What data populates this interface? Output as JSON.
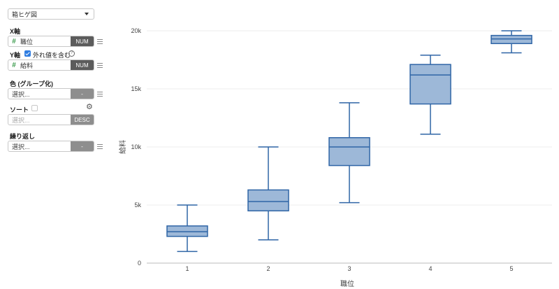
{
  "panel": {
    "chart_type": "箱ヒゲ図",
    "x_axis": {
      "label": "X軸",
      "field_icon": "#",
      "field": "職位",
      "type": "NUM"
    },
    "y_axis": {
      "label": "Y軸",
      "outlier_label": "外れ値を含む",
      "outlier_checked": true,
      "help": "?",
      "field_icon": "#",
      "field": "給料",
      "type": "NUM"
    },
    "color": {
      "label": "色 (グループ化)",
      "placeholder": "選択...",
      "tag": "-"
    },
    "sort": {
      "label": "ソート",
      "checked": false,
      "placeholder": "選択...",
      "tag": "DESC"
    },
    "repeat": {
      "label": "繰り返し",
      "placeholder": "選択...",
      "tag": "-"
    }
  },
  "chart_data": {
    "type": "boxplot",
    "xlabel": "職位",
    "ylabel": "給料",
    "categories": [
      "1",
      "2",
      "3",
      "4",
      "5"
    ],
    "ylim": [
      0,
      20000
    ],
    "yticks": [
      0,
      5000,
      10000,
      15000,
      20000
    ],
    "ytick_labels": [
      "0",
      "5k",
      "10k",
      "15k",
      "20k"
    ],
    "grid": true,
    "box_color": "#9db8d8",
    "line_color": "#2f65a6",
    "boxes": [
      {
        "x": "1",
        "min": 1000,
        "q1": 2300,
        "median": 2700,
        "q3": 3200,
        "max": 5000
      },
      {
        "x": "2",
        "min": 2000,
        "q1": 4500,
        "median": 5300,
        "q3": 6300,
        "max": 10000
      },
      {
        "x": "3",
        "min": 5200,
        "q1": 8400,
        "median": 10000,
        "q3": 10800,
        "max": 13800
      },
      {
        "x": "4",
        "min": 11100,
        "q1": 13700,
        "median": 16200,
        "q3": 17100,
        "max": 17900
      },
      {
        "x": "5",
        "min": 18100,
        "q1": 18900,
        "median": 19300,
        "q3": 19600,
        "max": 20000
      }
    ]
  }
}
